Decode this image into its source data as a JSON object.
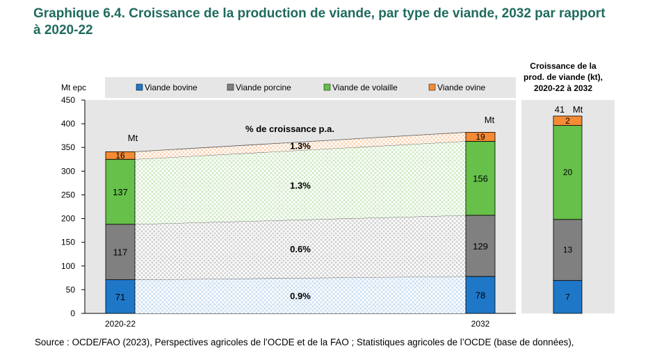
{
  "title_line1": "Graphique 6.4. Croissance de la production de viande, par type de viande, 2032 par rapport",
  "title_line2": "à 2020-22",
  "source": "Source : OCDE/FAO (2023), Perspectives agricoles de l’OCDE et de la FAO ; Statistiques agricoles de l’OCDE (base de données),",
  "colors": {
    "bovine": "#1f77c8",
    "porcine": "#808080",
    "volaille": "#66c04a",
    "ovine": "#f58b34",
    "panel_bg": "#e6e6e6"
  },
  "chart_data": [
    {
      "type": "bar",
      "ylabel": "Mt epc",
      "ylim": [
        0,
        450
      ],
      "yticks": [
        "0",
        "50",
        "100",
        "150",
        "200",
        "250",
        "300",
        "350",
        "400",
        "450"
      ],
      "categories": [
        "2020-22",
        "2032"
      ],
      "series": [
        {
          "name": "Viande bovine",
          "color_key": "bovine",
          "values": [
            71,
            78
          ],
          "growth_label": "0.9%"
        },
        {
          "name": "Viande porcine",
          "color_key": "porcine",
          "values": [
            117,
            129
          ],
          "growth_label": "0.6%"
        },
        {
          "name": "Viande de volaille",
          "color_key": "volaille",
          "values": [
            137,
            156
          ],
          "growth_label": "1.3%"
        },
        {
          "name": "Viande ovine",
          "color_key": "ovine",
          "values": [
            16,
            19
          ],
          "growth_label": "1.3%"
        }
      ],
      "unit_label": "Mt",
      "growth_title": "% de croissance p.a.",
      "legend_position": "top"
    },
    {
      "type": "bar",
      "title_lines": [
        "Croissance de la",
        "prod. de viande (kt),",
        "2020-22 à 2032"
      ],
      "ylim": [
        0,
        450
      ],
      "total_label": "41",
      "unit_label": "Mt",
      "segments": [
        {
          "name": "Viande bovine",
          "color_key": "bovine",
          "value": 7
        },
        {
          "name": "Viande porcine",
          "color_key": "porcine",
          "value": 13
        },
        {
          "name": "Viande de volaille",
          "color_key": "volaille",
          "value": 20
        },
        {
          "name": "Viande ovine",
          "color_key": "ovine",
          "value": 2
        }
      ]
    }
  ]
}
